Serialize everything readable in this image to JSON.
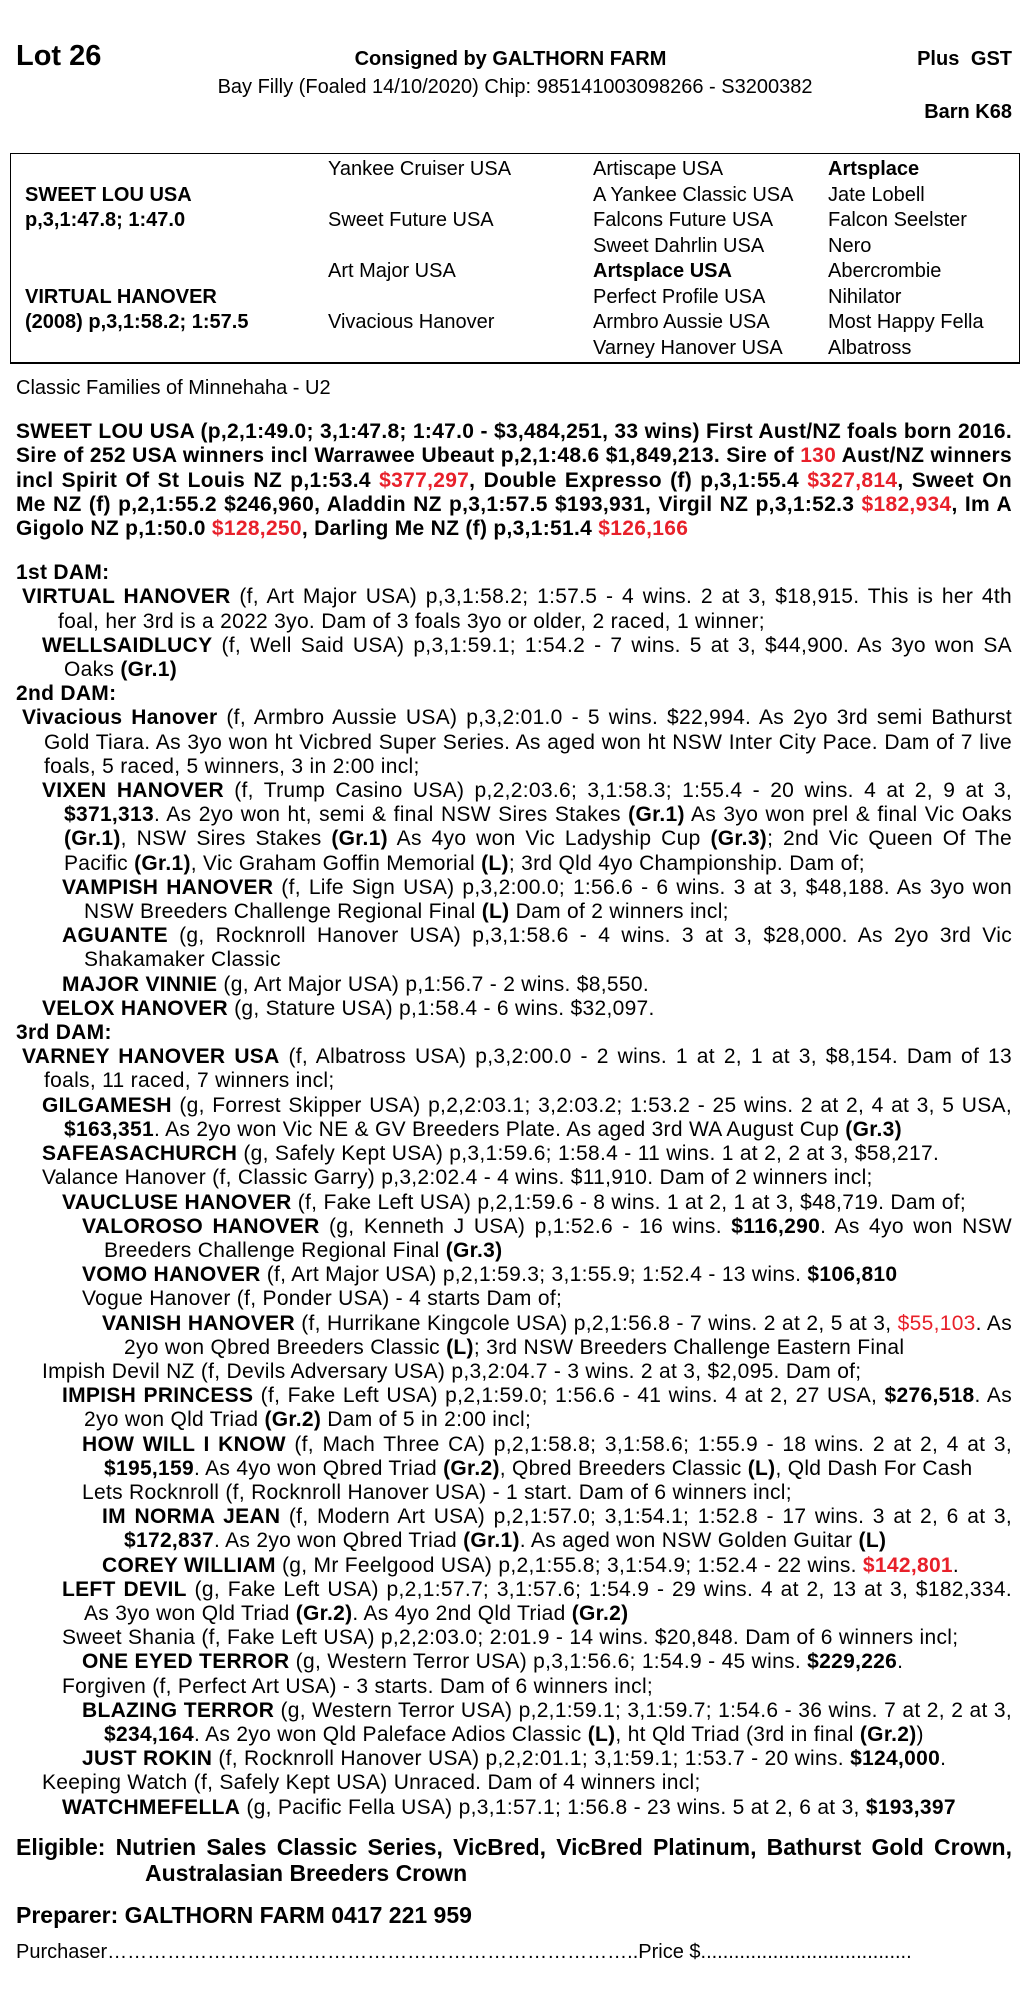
{
  "header": {
    "lot": "Lot 26",
    "consigned": "Consigned by GALTHORN FARM",
    "gst": "Plus GST",
    "description": "Bay Filly (Foaled 14/10/2020) Chip: 985141003098266 - S3200382",
    "barn": "Barn K68"
  },
  "pedigree": {
    "sire": {
      "name": "SWEET LOU USA",
      "record": "p,3,1:47.8; 1:47.0",
      "sire": "Yankee Cruiser USA",
      "dam": "Sweet Future USA",
      "gen3": [
        "Artiscape USA",
        "A Yankee Classic USA",
        "Falcons Future USA",
        "Sweet Dahrlin USA"
      ],
      "gen4": [
        "Artsplace",
        "Jate Lobell",
        "Falcon Seelster",
        "Nero"
      ]
    },
    "dam": {
      "name": "VIRTUAL HANOVER",
      "record": "(2008) p,3,1:58.2; 1:57.5",
      "sire": "Art Major USA",
      "dam": "Vivacious Hanover",
      "gen3": [
        "Artsplace USA",
        "Perfect Profile USA",
        "Armbro Aussie USA",
        "Varney Hanover USA"
      ],
      "gen4": [
        "Abercrombie",
        "Nihilator",
        "Most Happy Fella",
        "Albatross"
      ]
    }
  },
  "family": "Classic Families of Minnehaha - U2",
  "sire_paragraph": [
    {
      "t": "SWEET LOU USA (p,2,1:49.0; 3,1:47.8; 1:47.0 - $3,484,251, 33 wins) First Aust/NZ foals born 2016. Sire of 252 USA winners incl Warrawee Ubeaut p,2,1:48.6 $1,849,213. Sire of ",
      "s": ""
    },
    {
      "t": "130",
      "s": "r"
    },
    {
      "t": " Aust/NZ winners incl Spirit Of St Louis NZ p,1:53.4 ",
      "s": ""
    },
    {
      "t": "$377,297",
      "s": "r"
    },
    {
      "t": ", Double Expresso (f) p,3,1:55.4 ",
      "s": ""
    },
    {
      "t": "$327,814",
      "s": "r"
    },
    {
      "t": ", Sweet On Me NZ (f) p,2,1:55.2 $246,960, Aladdin NZ p,3,1:57.5 $193,931, Virgil NZ p,3,1:52.3 ",
      "s": ""
    },
    {
      "t": "$182,934",
      "s": "r"
    },
    {
      "t": ", Im A Gigolo NZ p,1:50.0 ",
      "s": ""
    },
    {
      "t": "$128,250",
      "s": "r"
    },
    {
      "t": ", Darling Me NZ (f) p,3,1:51.4 ",
      "s": ""
    },
    {
      "t": "$126,166",
      "s": "r"
    }
  ],
  "colors": {
    "highlight": "#e8202a",
    "text": "#000000"
  },
  "dams": [
    {
      "header": "1st DAM:",
      "entries": [
        {
          "level": 0,
          "segs": [
            {
              "t": "VIRTUAL HANOVER",
              "s": "b"
            },
            {
              "t": " (f, Art Major USA) p,3,1:58.2; 1:57.5 - 4 wins. 2 at 3, $18,915. This is her 4th foal, her 3rd is a 2022 3yo. Dam of 3 foals 3yo or older, 2 raced, 1 winner;",
              "s": ""
            }
          ]
        },
        {
          "level": 1,
          "segs": [
            {
              "t": "WELLSAIDLUCY",
              "s": "b"
            },
            {
              "t": " (f, Well Said USA) p,3,1:59.1; 1:54.2 - 7 wins. 5 at 3, $44,900. As 3yo won SA Oaks ",
              "s": ""
            },
            {
              "t": "(Gr.1)",
              "s": "b"
            }
          ]
        }
      ]
    },
    {
      "header": "2nd DAM:",
      "entries": [
        {
          "level": 0,
          "segs": [
            {
              "t": "Vivacious Hanover",
              "s": "b"
            },
            {
              "t": " (f, Armbro Aussie USA) p,3,2:01.0 - 5 wins. $22,994. As 2yo 3rd semi Bathurst Gold Tiara. As 3yo won ht Vicbred Super Series. As aged won ht NSW Inter City Pace. Dam of 7 live foals, 5 raced, 5 winners, 3 in 2:00 incl;",
              "s": ""
            }
          ]
        },
        {
          "level": 1,
          "segs": [
            {
              "t": "VIXEN HANOVER",
              "s": "b"
            },
            {
              "t": " (f, Trump Casino USA) p,2,2:03.6; 3,1:58.3; 1:55.4 - 20 wins. 4 at 2, 9 at 3, ",
              "s": ""
            },
            {
              "t": "$371,313",
              "s": "b"
            },
            {
              "t": ". As 2yo won ht, semi & final NSW Sires Stakes ",
              "s": ""
            },
            {
              "t": "(Gr.1)",
              "s": "b"
            },
            {
              "t": " As 3yo won prel & final Vic Oaks ",
              "s": ""
            },
            {
              "t": "(Gr.1)",
              "s": "b"
            },
            {
              "t": ", NSW Sires Stakes ",
              "s": ""
            },
            {
              "t": "(Gr.1)",
              "s": "b"
            },
            {
              "t": " As 4yo won Vic Ladyship Cup ",
              "s": ""
            },
            {
              "t": "(Gr.3)",
              "s": "b"
            },
            {
              "t": "; 2nd Vic Queen Of The Pacific ",
              "s": ""
            },
            {
              "t": "(Gr.1)",
              "s": "b"
            },
            {
              "t": ", Vic Graham Goffin Memorial ",
              "s": ""
            },
            {
              "t": "(L)",
              "s": "b"
            },
            {
              "t": "; 3rd Qld 4yo Championship. Dam of;",
              "s": ""
            }
          ]
        },
        {
          "level": 2,
          "segs": [
            {
              "t": "VAMPISH HANOVER",
              "s": "b"
            },
            {
              "t": " (f, Life Sign USA) p,3,2:00.0; 1:56.6 - 6 wins. 3 at 3, $48,188. As 3yo won NSW Breeders Challenge Regional Final ",
              "s": ""
            },
            {
              "t": "(L)",
              "s": "b"
            },
            {
              "t": " Dam of 2 winners incl;",
              "s": ""
            }
          ]
        },
        {
          "level": 2,
          "segs": [
            {
              "t": "AGUANTE",
              "s": "b"
            },
            {
              "t": " (g, Rocknroll Hanover USA) p,3,1:58.6 - 4 wins. 3 at 3, $28,000. As 2yo 3rd Vic Shakamaker Classic",
              "s": ""
            }
          ]
        },
        {
          "level": 2,
          "segs": [
            {
              "t": "MAJOR VINNIE",
              "s": "b"
            },
            {
              "t": " (g, Art Major USA) p,1:56.7 - 2 wins. $8,550.",
              "s": ""
            }
          ]
        },
        {
          "level": 1,
          "segs": [
            {
              "t": "VELOX HANOVER",
              "s": "b"
            },
            {
              "t": " (g, Stature USA) p,1:58.4 - 6 wins. $32,097.",
              "s": ""
            }
          ]
        }
      ]
    },
    {
      "header": "3rd DAM:",
      "entries": [
        {
          "level": 0,
          "segs": [
            {
              "t": "VARNEY HANOVER USA",
              "s": "b"
            },
            {
              "t": " (f, Albatross USA) p,3,2:00.0 - 2 wins. 1 at 2, 1 at 3, $8,154. Dam of 13 foals, 11 raced, 7 winners incl;",
              "s": ""
            }
          ]
        },
        {
          "level": 1,
          "segs": [
            {
              "t": "GILGAMESH",
              "s": "b"
            },
            {
              "t": " (g, Forrest Skipper USA) p,2,2:03.1; 3,2:03.2; 1:53.2 - 25 wins. 2 at 2, 4 at 3, 5 USA, ",
              "s": ""
            },
            {
              "t": "$163,351",
              "s": "b"
            },
            {
              "t": ". As 2yo won Vic NE & GV Breeders Plate. As aged 3rd WA August Cup ",
              "s": ""
            },
            {
              "t": "(Gr.3)",
              "s": "b"
            }
          ]
        },
        {
          "level": 1,
          "segs": [
            {
              "t": "SAFEASACHURCH",
              "s": "b"
            },
            {
              "t": " (g, Safely Kept USA) p,3,1:59.6; 1:58.4 - 11 wins. 1 at 2, 2 at 3, $58,217.",
              "s": ""
            }
          ]
        },
        {
          "level": 1,
          "segs": [
            {
              "t": "Valance Hanover (f, Classic Garry) p,3,2:02.4 - 4 wins. $11,910. Dam of 2 winners incl;",
              "s": ""
            }
          ]
        },
        {
          "level": 2,
          "segs": [
            {
              "t": "VAUCLUSE HANOVER",
              "s": "b"
            },
            {
              "t": " (f, Fake Left USA) p,2,1:59.6 - 8 wins. 1 at 2, 1 at 3, $48,719. Dam of;",
              "s": ""
            }
          ]
        },
        {
          "level": 3,
          "segs": [
            {
              "t": "VALOROSO HANOVER",
              "s": "b"
            },
            {
              "t": " (g, Kenneth J USA) p,1:52.6 - 16 wins. ",
              "s": ""
            },
            {
              "t": "$116,290",
              "s": "b"
            },
            {
              "t": ". As 4yo won NSW Breeders Challenge Regional Final ",
              "s": ""
            },
            {
              "t": "(Gr.3)",
              "s": "b"
            }
          ]
        },
        {
          "level": 3,
          "segs": [
            {
              "t": "VOMO HANOVER",
              "s": "b"
            },
            {
              "t": " (f, Art Major USA) p,2,1:59.3; 3,1:55.9; 1:52.4 - 13 wins. ",
              "s": ""
            },
            {
              "t": "$106,810",
              "s": "b"
            }
          ]
        },
        {
          "level": 3,
          "segs": [
            {
              "t": "Vogue Hanover (f, Ponder USA) - 4 starts Dam of;",
              "s": ""
            }
          ]
        },
        {
          "level": 4,
          "segs": [
            {
              "t": "VANISH HANOVER",
              "s": "b"
            },
            {
              "t": " (f, Hurrikane Kingcole USA) p,2,1:56.8 - 7 wins. 2 at 2, 5 at 3, ",
              "s": ""
            },
            {
              "t": "$55,103",
              "s": "r"
            },
            {
              "t": ". As 2yo won Qbred Breeders Classic ",
              "s": ""
            },
            {
              "t": "(L)",
              "s": "b"
            },
            {
              "t": "; 3rd NSW Breeders Challenge Eastern Final",
              "s": ""
            }
          ]
        },
        {
          "level": 1,
          "segs": [
            {
              "t": "Impish Devil NZ (f, Devils Adversary USA) p,3,2:04.7 - 3 wins. 2 at 3, $2,095. Dam of;",
              "s": ""
            }
          ]
        },
        {
          "level": 2,
          "segs": [
            {
              "t": "IMPISH PRINCESS",
              "s": "b"
            },
            {
              "t": " (f, Fake Left USA) p,2,1:59.0; 1:56.6 - 41 wins. 4 at 2, 27 USA, ",
              "s": ""
            },
            {
              "t": "$276,518",
              "s": "b"
            },
            {
              "t": ". As 2yo won Qld Triad ",
              "s": ""
            },
            {
              "t": "(Gr.2)",
              "s": "b"
            },
            {
              "t": " Dam of 5 in 2:00 incl;",
              "s": ""
            }
          ]
        },
        {
          "level": 3,
          "segs": [
            {
              "t": "HOW WILL I KNOW",
              "s": "b"
            },
            {
              "t": " (f, Mach Three CA) p,2,1:58.8; 3,1:58.6; 1:55.9 - 18 wins. 2 at 2, 4 at 3, ",
              "s": ""
            },
            {
              "t": "$195,159",
              "s": "b"
            },
            {
              "t": ". As 4yo won Qbred Triad ",
              "s": ""
            },
            {
              "t": "(Gr.2)",
              "s": "b"
            },
            {
              "t": ", Qbred Breeders Classic ",
              "s": ""
            },
            {
              "t": "(L)",
              "s": "b"
            },
            {
              "t": ", Qld Dash For Cash",
              "s": ""
            }
          ]
        },
        {
          "level": 3,
          "segs": [
            {
              "t": "Lets Rocknroll (f, Rocknroll Hanover USA) - 1 start. Dam of 6 winners incl;",
              "s": ""
            }
          ]
        },
        {
          "level": 4,
          "segs": [
            {
              "t": "IM NORMA JEAN",
              "s": "b"
            },
            {
              "t": " (f, Modern Art USA) p,2,1:57.0; 3,1:54.1; 1:52.8 - 17 wins. 3 at 2, 6 at 3, ",
              "s": ""
            },
            {
              "t": "$172,837",
              "s": "b"
            },
            {
              "t": ". As 2yo won Qbred Triad ",
              "s": ""
            },
            {
              "t": "(Gr.1)",
              "s": "b"
            },
            {
              "t": ". As aged won NSW Golden Guitar ",
              "s": ""
            },
            {
              "t": "(L)",
              "s": "b"
            }
          ]
        },
        {
          "level": 4,
          "segs": [
            {
              "t": "COREY WILLIAM",
              "s": "b"
            },
            {
              "t": " (g, Mr Feelgood USA) p,2,1:55.8; 3,1:54.9; 1:52.4 - 22 wins. ",
              "s": ""
            },
            {
              "t": "$142,801",
              "s": "br"
            },
            {
              "t": ".",
              "s": ""
            }
          ]
        },
        {
          "level": 2,
          "segs": [
            {
              "t": "LEFT DEVIL",
              "s": "b"
            },
            {
              "t": " (g, Fake Left USA) p,2,1:57.7; 3,1:57.6; 1:54.9 - 29 wins. 4 at 2, 13 at 3, $182,334. As 3yo won Qld Triad ",
              "s": ""
            },
            {
              "t": "(Gr.2)",
              "s": "b"
            },
            {
              "t": ". As 4yo 2nd Qld Triad ",
              "s": ""
            },
            {
              "t": "(Gr.2)",
              "s": "b"
            }
          ]
        },
        {
          "level": 2,
          "segs": [
            {
              "t": "Sweet Shania (f, Fake Left USA) p,2,2:03.0; 2:01.9 - 14 wins. $20,848. Dam of 6 winners incl;",
              "s": ""
            }
          ]
        },
        {
          "level": 3,
          "segs": [
            {
              "t": "ONE EYED TERROR",
              "s": "b"
            },
            {
              "t": " (g, Western Terror USA) p,3,1:56.6; 1:54.9 - 45 wins. ",
              "s": ""
            },
            {
              "t": "$229,226",
              "s": "b"
            },
            {
              "t": ".",
              "s": ""
            }
          ]
        },
        {
          "level": 2,
          "segs": [
            {
              "t": "Forgiven (f, Perfect Art USA) - 3 starts. Dam of 6 winners incl;",
              "s": ""
            }
          ]
        },
        {
          "level": 3,
          "segs": [
            {
              "t": "BLAZING TERROR",
              "s": "b"
            },
            {
              "t": " (g, Western Terror USA) p,2,1:59.1; 3,1:59.7; 1:54.6 - 36 wins. 7 at 2, 2 at 3, ",
              "s": ""
            },
            {
              "t": "$234,164",
              "s": "b"
            },
            {
              "t": ". As 2yo won Qld Paleface Adios Classic ",
              "s": ""
            },
            {
              "t": "(L)",
              "s": "b"
            },
            {
              "t": ", ht Qld Triad (3rd in final ",
              "s": ""
            },
            {
              "t": "(Gr.2)",
              "s": "b"
            },
            {
              "t": ")",
              "s": ""
            }
          ]
        },
        {
          "level": 3,
          "segs": [
            {
              "t": "JUST ROKIN",
              "s": "b"
            },
            {
              "t": " (f, Rocknroll Hanover USA) p,2,2:01.1; 3,1:59.1; 1:53.7 - 20 wins. ",
              "s": ""
            },
            {
              "t": "$124,000",
              "s": "b"
            },
            {
              "t": ".",
              "s": ""
            }
          ]
        },
        {
          "level": 1,
          "segs": [
            {
              "t": "Keeping Watch (f, Safely Kept USA) Unraced. Dam of 4 winners incl;",
              "s": ""
            }
          ]
        },
        {
          "level": 2,
          "segs": [
            {
              "t": "WATCHMEFELLA",
              "s": "b"
            },
            {
              "t": " (g, Pacific Fella USA) p,3,1:57.1; 1:56.8 - 23 wins. 5 at 2, 6 at 3, ",
              "s": ""
            },
            {
              "t": "$193,397",
              "s": "b"
            }
          ]
        }
      ]
    }
  ],
  "eligible": "Eligible: Nutrien Sales Classic Series, VicBred, VicBred Platinum, Bathurst Gold Crown, Australasian Breeders Crown",
  "preparer": "Preparer: GALTHORN FARM 0417 221 959",
  "purchaser": {
    "label": "Purchaser",
    "dots": "……………………………………………………………………",
    "price_label": "..Price $",
    "price_dots": "......................................"
  }
}
